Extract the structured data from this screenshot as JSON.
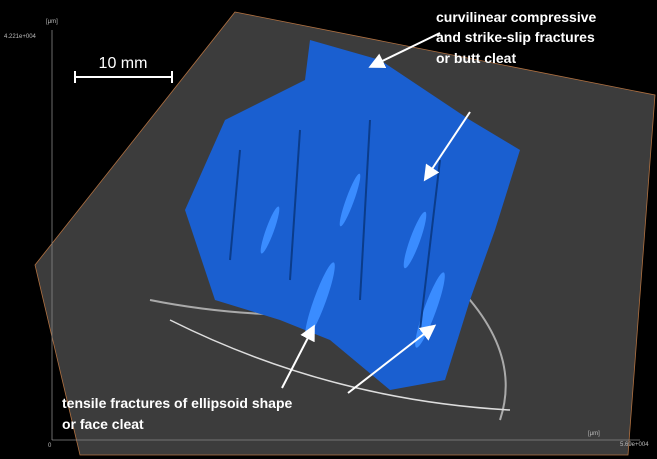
{
  "axes": {
    "y_unit": "[μm]",
    "y_max": "4.221e+004",
    "origin": "0",
    "x_unit": "[μm]",
    "x_max": "5.69e+004"
  },
  "scale_bar": {
    "label": "10 mm"
  },
  "annotations": [
    {
      "lines": [
        "curvilinear compressive",
        "and strike-slip fractures",
        "or butt cleat"
      ]
    },
    {
      "lines": [
        "tensile fractures of ellipsoid shape",
        "or face cleat"
      ]
    }
  ]
}
